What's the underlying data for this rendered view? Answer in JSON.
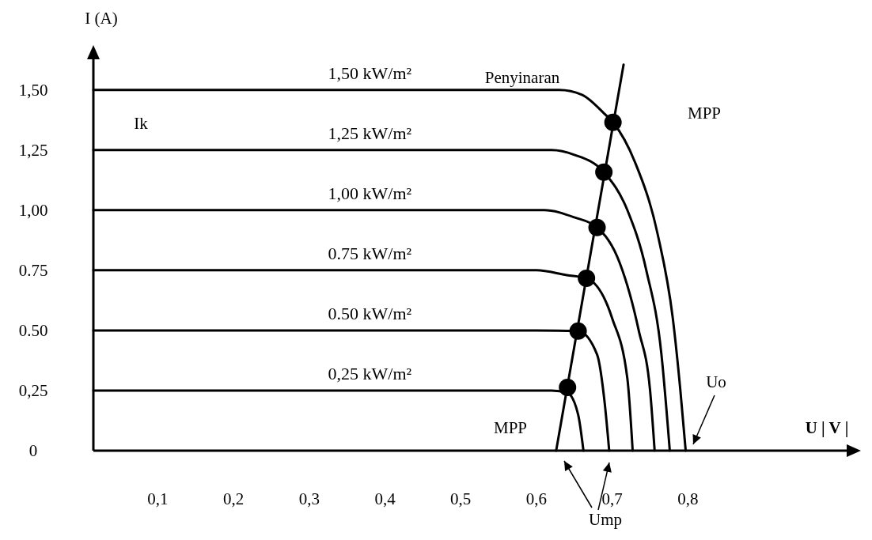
{
  "chart_data": {
    "type": "line",
    "xlabel": "U | V |",
    "ylabel": "I (A)",
    "xlim": [
      0.015,
      1.02
    ],
    "ylim": [
      0,
      1.66
    ],
    "xticks": [
      {
        "value": 0.1,
        "label": "0,1"
      },
      {
        "value": 0.2,
        "label": "0,2"
      },
      {
        "value": 0.3,
        "label": "0,3"
      },
      {
        "value": 0.4,
        "label": "0,4"
      },
      {
        "value": 0.5,
        "label": "0,5"
      },
      {
        "value": 0.6,
        "label": "0,6"
      },
      {
        "value": 0.7,
        "label": "0,7"
      },
      {
        "value": 0.8,
        "label": "0,8"
      }
    ],
    "yticks": [
      0,
      {
        "value": 0.25,
        "label": "0,25"
      },
      {
        "value": 0.5,
        "label": "0.50"
      },
      {
        "value": 0.75,
        "label": "0.75"
      },
      {
        "value": 1,
        "label": "1,00"
      },
      {
        "value": 1.25,
        "label": "1,25"
      },
      {
        "value": 1.5,
        "label": "1,50"
      }
    ],
    "grid": false,
    "line_style": "solid",
    "series": [
      {
        "name": "1,50 kW/m²",
        "color": "#000000",
        "marker": "none",
        "x": [
          0.015,
          0.63,
          0.66,
          0.69,
          0.701,
          0.73,
          0.76,
          0.78,
          0.79,
          0.797
        ],
        "values": [
          1.5,
          1.5,
          1.48,
          1.4,
          1.365,
          1.2,
          0.9,
          0.55,
          0.25,
          0
        ]
      },
      {
        "name": "1,25 kW/m²",
        "color": "#000000",
        "marker": "none",
        "x": [
          0.015,
          0.62,
          0.65,
          0.689,
          0.72,
          0.745,
          0.765,
          0.776
        ],
        "values": [
          1.25,
          1.25,
          1.23,
          1.158,
          1.0,
          0.75,
          0.4,
          0
        ]
      },
      {
        "name": "1,00 kW/m²",
        "color": "#000000",
        "marker": "none",
        "x": [
          0.015,
          0.61,
          0.65,
          0.68,
          0.71,
          0.735,
          0.75,
          0.756
        ],
        "values": [
          1.0,
          1.0,
          0.97,
          0.928,
          0.78,
          0.5,
          0.25,
          0
        ]
      },
      {
        "name": "0.75 kW/m²",
        "color": "#000000",
        "marker": "none",
        "x": [
          0.015,
          0.6,
          0.64,
          0.666,
          0.7,
          0.72,
          0.727
        ],
        "values": [
          0.75,
          0.75,
          0.73,
          0.717,
          0.55,
          0.3,
          0
        ]
      },
      {
        "name": "0.50 kW/m²",
        "color": "#000000",
        "marker": "none",
        "x": [
          0.015,
          0.6,
          0.655,
          0.68,
          0.69,
          0.696
        ],
        "values": [
          0.5,
          0.5,
          0.497,
          0.4,
          0.2,
          0
        ]
      },
      {
        "name": "0,25 kW/m²",
        "color": "#000000",
        "marker": "none",
        "x": [
          0.015,
          0.62,
          0.641,
          0.655,
          0.662
        ],
        "values": [
          0.25,
          0.25,
          0.24,
          0.15,
          0
        ]
      },
      {
        "type": "scatter",
        "color": "#000000",
        "marker": "circle",
        "x": [
          0.701,
          0.689,
          0.68,
          0.666,
          0.655,
          0.641
        ],
        "values": [
          1.365,
          1.158,
          0.928,
          0.717,
          0.497,
          0.263
        ]
      },
      {
        "color": "#000000",
        "marker": "none",
        "x": [
          0.626,
          0.715
        ],
        "values": [
          0,
          1.605
        ]
      }
    ],
    "annotations": [
      "Penyinaran",
      "Ik",
      "MPP",
      "MPP",
      "Uo",
      "Ump"
    ]
  }
}
